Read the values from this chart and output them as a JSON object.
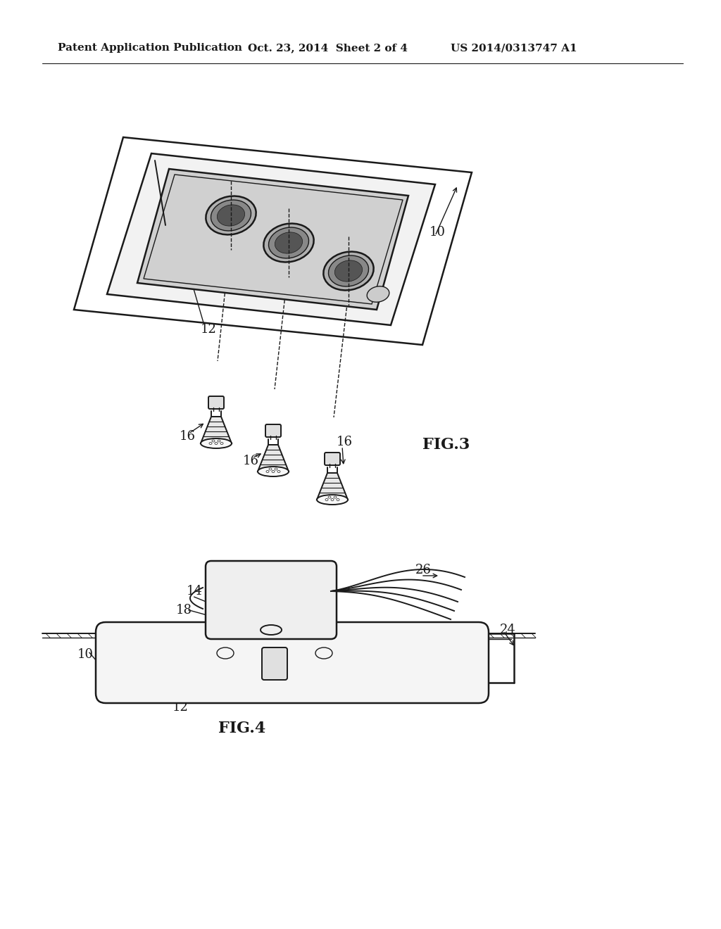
{
  "background_color": "#ffffff",
  "line_color": "#1a1a1a",
  "header_left": "Patent Application Publication",
  "header_mid": "Oct. 23, 2014  Sheet 2 of 4",
  "header_right": "US 2014/0313747 A1",
  "fig3_label": "FIG.3",
  "fig4_label": "FIG.4",
  "ref_10": "10",
  "ref_12": "12",
  "ref_16a": "16",
  "ref_16b": "16",
  "ref_16c": "16",
  "ref_14": "14",
  "ref_18": "18",
  "ref_24": "24",
  "ref_26": "26",
  "ref_12b": "12",
  "ref_10b": "10"
}
